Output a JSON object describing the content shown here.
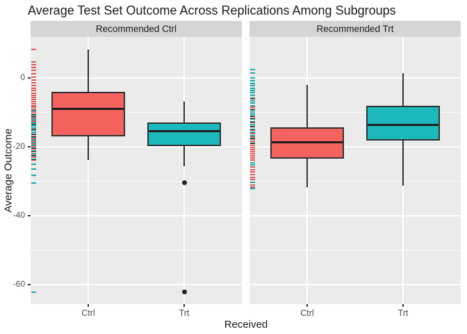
{
  "chart_data": {
    "type": "boxplot",
    "title": "Average Test Set Outcome Across Replications Among Subgroups",
    "xlabel": "Received",
    "ylabel": "Average Outcome",
    "ylim": [
      -65.7,
      12
    ],
    "yticks_major": [
      0,
      -20,
      -40,
      -60
    ],
    "yticks_minor": [
      -10,
      -30,
      -50
    ],
    "ytick_labels": [
      "0",
      "-20",
      "-40",
      "-60"
    ],
    "categories": [
      "Ctrl",
      "Trt"
    ],
    "legend_position": "none",
    "grid": "on",
    "colors": {
      "ctrl_fill": "#F4635E",
      "trt_fill": "#1CB8BC",
      "box_border": "#333333",
      "panel_bg": "#EBEBEB",
      "strip_bg": "#D5D5D5",
      "gridline": "#FFFFFF",
      "tick_text": "#4D4D4D",
      "outlier": "#252525"
    },
    "facets": [
      {
        "label": "Recommended Ctrl",
        "boxes": [
          {
            "category": "Ctrl",
            "group": "ctrl",
            "whisker_low": -23.9,
            "q1": -16.9,
            "median": -8.9,
            "q3": -4.0,
            "whisker_high": 8.4,
            "outliers": []
          },
          {
            "category": "Trt",
            "group": "trt",
            "whisker_low": -25.7,
            "q1": -19.7,
            "median": -15.5,
            "q3": -12.9,
            "whisker_high": -6.8,
            "outliers": [
              -30.4,
              -62.2
            ]
          }
        ],
        "rug": {
          "ctrl": [
            8.4,
            4.8,
            4.0,
            3.1,
            2.2,
            1.2,
            0.2,
            -0.6,
            -1.3,
            -2.2,
            -2.9,
            -3.6,
            -4.4,
            -5.0,
            -5.7,
            -6.3,
            -6.9,
            -7.5,
            -8.0,
            -8.5,
            -9.0,
            -9.8,
            -10.4,
            -11.0,
            -11.7,
            -12.4,
            -13.2,
            -14.9,
            -16.3,
            -17.0,
            -17.6,
            -18.4,
            -19.2,
            -20.0,
            -20.6,
            -21.4,
            -22.3,
            -23.1,
            -23.9
          ],
          "trt": [
            -9.4,
            -10.6,
            -11.3,
            -12.0,
            -12.8,
            -13.4,
            -14.0,
            -14.6,
            -15.2,
            -15.8,
            -16.4,
            -17.1,
            -17.9,
            -18.7,
            -19.5,
            -20.3,
            -21.1,
            -21.9,
            -22.7,
            -23.7,
            -25.1,
            -26.5,
            -28.2,
            -30.4,
            -62.2
          ]
        }
      },
      {
        "label": "Recommended Trt",
        "boxes": [
          {
            "category": "Ctrl",
            "group": "ctrl",
            "whisker_low": -31.8,
            "q1": -23.5,
            "median": -18.7,
            "q3": -14.3,
            "whisker_high": -2.0,
            "outliers": []
          },
          {
            "category": "Trt",
            "group": "trt",
            "whisker_low": -31.4,
            "q1": -18.1,
            "median": -13.5,
            "q3": -8.0,
            "whisker_high": 1.4,
            "outliers": []
          }
        ],
        "rug": {
          "ctrl": [
            -6.0,
            -8.4,
            -9.0,
            -11.0,
            -11.7,
            -12.8,
            -14.2,
            -15.1,
            -16.2,
            -17.2,
            -17.8,
            -18.4,
            -19.0,
            -19.6,
            -20.2,
            -20.8,
            -21.4,
            -22.0,
            -22.6,
            -23.2,
            -23.9,
            -25.9,
            -26.6,
            -27.3,
            -28.0,
            -28.8,
            -29.5,
            -31.0,
            -31.8
          ],
          "trt": [
            2.4,
            1.4,
            0.0,
            -0.8,
            -1.6,
            -2.2,
            -2.9,
            -3.5,
            -4.2,
            -4.9,
            -5.8,
            -6.6,
            -7.3,
            -8.0,
            -9.2,
            -9.8,
            -10.5,
            -11.1,
            -11.9,
            -12.6,
            -13.4,
            -14.2,
            -15.0,
            -15.8,
            -16.7,
            -17.6,
            -18.9,
            -24.6,
            -25.3,
            -30.2,
            -32.2
          ]
        }
      }
    ]
  }
}
